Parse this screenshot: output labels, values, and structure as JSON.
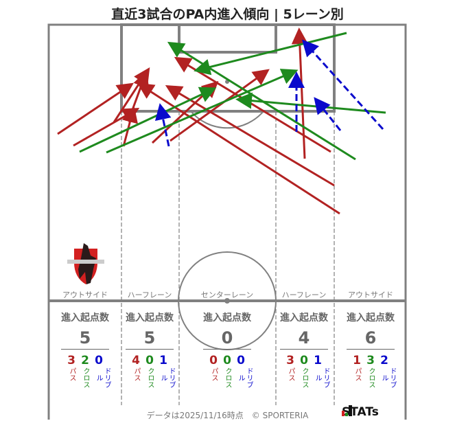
{
  "title": "直近3試合のPA内進入傾向 | 5レーン別",
  "colors": {
    "pass": "#b22222",
    "cross": "#1e8a1e",
    "dribble": "#0a0acc",
    "line": "#808080"
  },
  "lanes": [
    {
      "name": "アウトサイド",
      "heading": "進入起点数",
      "total": "5",
      "pass": "3",
      "cross": "2",
      "dribble": "0"
    },
    {
      "name": "ハーフレーン",
      "heading": "進入起点数",
      "total": "5",
      "pass": "4",
      "cross": "0",
      "dribble": "1"
    },
    {
      "name": "センターレーン",
      "heading": "進入起点数",
      "total": "0",
      "pass": "0",
      "cross": "0",
      "dribble": "0"
    },
    {
      "name": "ハーフレーン",
      "heading": "進入起点数",
      "total": "4",
      "pass": "3",
      "cross": "0",
      "dribble": "1"
    },
    {
      "name": "アウトサイド",
      "heading": "進入起点数",
      "total": "6",
      "pass": "1",
      "cross": "3",
      "dribble": "2"
    }
  ],
  "type_labels": {
    "pass": "パス",
    "cross": "クロス",
    "dribble": "ドリブル"
  },
  "footer": "データは2025/11/16時点　© SPORTERIA",
  "brand": "STATs",
  "team_logo_text": "ROASSO KUMAMOTO",
  "chart_data": {
    "type": "arrow-map",
    "title": "直近3試合のPA内進入傾向 | 5レーン別",
    "arrows": [
      {
        "type": "pass",
        "from": [
          84,
          195
        ],
        "to": [
          190,
          124
        ]
      },
      {
        "type": "pass",
        "from": [
          107,
          212
        ],
        "to": [
          198,
          160
        ]
      },
      {
        "type": "pass",
        "from": [
          166,
          178
        ],
        "to": [
          215,
          103
        ]
      },
      {
        "type": "pass",
        "from": [
          180,
          213
        ],
        "to": [
          194,
          160
        ]
      },
      {
        "type": "pass",
        "from": [
          190,
          168
        ],
        "to": [
          212,
          108
        ]
      },
      {
        "type": "pass",
        "from": [
          222,
          208
        ],
        "to": [
          314,
          122
        ]
      },
      {
        "type": "pass",
        "from": [
          248,
          205
        ],
        "to": [
          388,
          104
        ]
      },
      {
        "type": "pass",
        "from": [
          487,
          270
        ],
        "to": [
          246,
          127
        ]
      },
      {
        "type": "pass",
        "from": [
          495,
          311
        ],
        "to": [
          205,
          124
        ]
      },
      {
        "type": "pass",
        "from": [
          482,
          221
        ],
        "to": [
          259,
          86
        ]
      },
      {
        "type": "pass",
        "from": [
          444,
          231
        ],
        "to": [
          436,
          46
        ]
      },
      {
        "type": "cross",
        "from": [
          116,
          221
        ],
        "to": [
          310,
          130
        ]
      },
      {
        "type": "cross",
        "from": [
          155,
          222
        ],
        "to": [
          429,
          104
        ]
      },
      {
        "type": "cross",
        "from": [
          505,
          48
        ],
        "to": [
          288,
          102
        ]
      },
      {
        "type": "cross",
        "from": [
          518,
          232
        ],
        "to": [
          249,
          64
        ]
      },
      {
        "type": "cross",
        "from": [
          562,
          164
        ],
        "to": [
          349,
          145
        ]
      },
      {
        "type": "dribble",
        "from": [
          246,
          213
        ],
        "to": [
          234,
          156
        ]
      },
      {
        "type": "dribble",
        "from": [
          432,
          192
        ],
        "to": [
          432,
          110
        ]
      },
      {
        "type": "dribble",
        "from": [
          496,
          190
        ],
        "to": [
          461,
          146
        ]
      },
      {
        "type": "dribble",
        "from": [
          558,
          188
        ],
        "to": [
          444,
          62
        ]
      }
    ]
  }
}
